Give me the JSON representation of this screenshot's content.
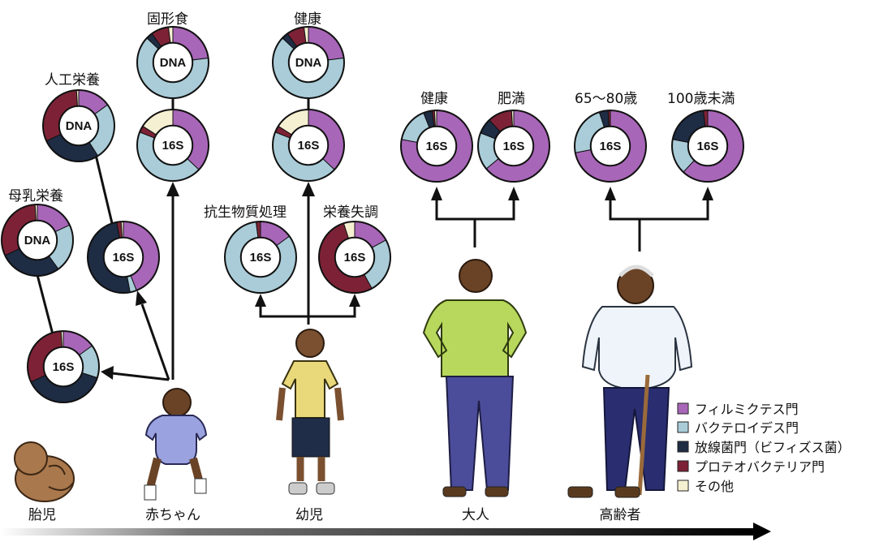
{
  "colors": {
    "firmicutes": "#a866b8",
    "bacteroidetes": "#a9ccd8",
    "actinobacteria": "#1e2c44",
    "proteobacteria": "#7d2236",
    "other": "#f6f0d2"
  },
  "stages": [
    "胎児",
    "赤ちゃん",
    "幼児",
    "大人",
    "高齢者"
  ],
  "chart_data": {
    "type": "pie",
    "series_order": [
      "firmicutes",
      "bacteroidetes",
      "actinobacteria",
      "proteobacteria",
      "other"
    ],
    "charts": [
      {
        "id": "bf-dna",
        "label": "母乳栄養",
        "inner": "DNA",
        "values": [
          0.18,
          0.22,
          0.28,
          0.31,
          0.01
        ]
      },
      {
        "id": "bf-16s",
        "label": "",
        "inner": "16S",
        "values": [
          0.15,
          0.15,
          0.38,
          0.31,
          0.01
        ]
      },
      {
        "id": "ff-dna",
        "label": "人工栄養",
        "inner": "DNA",
        "values": [
          0.15,
          0.26,
          0.27,
          0.31,
          0.01
        ]
      },
      {
        "id": "ff-16s",
        "label": "",
        "inner": "16S",
        "values": [
          0.44,
          0.03,
          0.5,
          0.02,
          0.01
        ]
      },
      {
        "id": "sf-dna",
        "label": "固形食",
        "inner": "DNA",
        "values": [
          0.23,
          0.64,
          0.03,
          0.08,
          0.02
        ]
      },
      {
        "id": "sf-16s",
        "label": "",
        "inner": "16S",
        "values": [
          0.37,
          0.44,
          0.0,
          0.03,
          0.16
        ]
      },
      {
        "id": "hc-dna",
        "label": "健康",
        "inner": "DNA",
        "values": [
          0.23,
          0.64,
          0.03,
          0.08,
          0.02
        ]
      },
      {
        "id": "hc-16s",
        "label": "",
        "inner": "16S",
        "values": [
          0.37,
          0.44,
          0.0,
          0.03,
          0.16
        ]
      },
      {
        "id": "ab-16s",
        "label": "抗生物質処理",
        "inner": "16S",
        "values": [
          0.15,
          0.83,
          0.0,
          0.02,
          0.0
        ]
      },
      {
        "id": "mn-16s",
        "label": "栄養失調",
        "inner": "16S",
        "values": [
          0.17,
          0.25,
          0.0,
          0.53,
          0.05
        ]
      },
      {
        "id": "ah-16s",
        "label": "健康",
        "inner": "16S",
        "values": [
          0.78,
          0.16,
          0.04,
          0.01,
          0.01
        ]
      },
      {
        "id": "ob-16s",
        "label": "肥満",
        "inner": "16S",
        "values": [
          0.64,
          0.17,
          0.07,
          0.11,
          0.01
        ]
      },
      {
        "id": "el-16s",
        "label": "65～80歳",
        "inner": "16S",
        "values": [
          0.72,
          0.23,
          0.04,
          0.01,
          0.0
        ]
      },
      {
        "id": "cen-16s",
        "label": "100歳未満",
        "inner": "16S",
        "values": [
          0.62,
          0.16,
          0.2,
          0.02,
          0.0
        ]
      }
    ]
  },
  "legend": [
    {
      "key": "firmicutes",
      "label": "フィルミクテス門"
    },
    {
      "key": "bacteroidetes",
      "label": "バクテロイデス門"
    },
    {
      "key": "actinobacteria",
      "label": "放線菌門（ビフィズス菌）"
    },
    {
      "key": "proteobacteria",
      "label": "プロテオバクテリア門"
    },
    {
      "key": "other",
      "label": "その他"
    }
  ]
}
